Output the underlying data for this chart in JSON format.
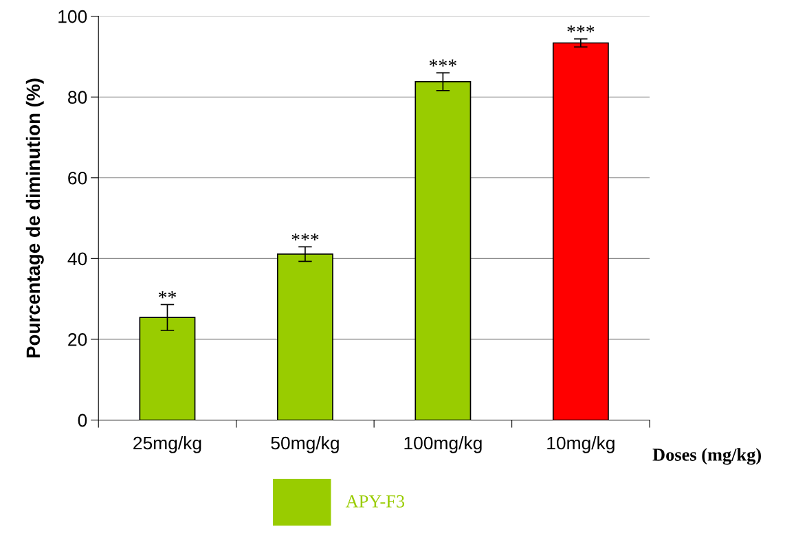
{
  "chart_data": {
    "type": "bar",
    "categories": [
      "25mg/kg",
      "50mg/kg",
      "100mg/kg",
      "10mg/kg"
    ],
    "series": [
      {
        "name": "APY-F3",
        "color": "#99cc00",
        "values": [
          25.4,
          41.1,
          83.8,
          null
        ],
        "errors": [
          3.2,
          1.8,
          2.2,
          null
        ]
      },
      {
        "color": "#ff0000",
        "values": [
          null,
          null,
          null,
          93.4
        ],
        "errors": [
          null,
          null,
          null,
          1.0
        ]
      }
    ],
    "ylabel": "Pourcentage de diminution (%)",
    "xlabel": "Doses (mg/kg)",
    "ylim": [
      0,
      100
    ],
    "yticks": [
      0,
      20,
      40,
      60,
      80,
      100
    ],
    "grid": "y",
    "legend": "bottom",
    "annotations": [
      "**",
      "***",
      "***",
      "***"
    ]
  }
}
